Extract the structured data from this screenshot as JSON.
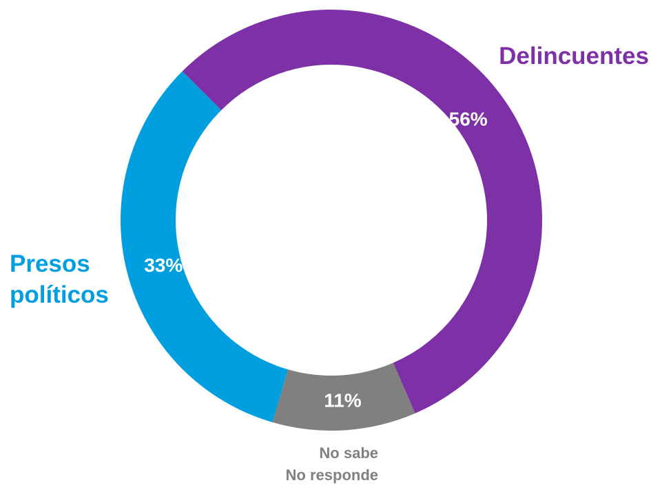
{
  "chart_data": {
    "type": "pie",
    "variant": "donut",
    "slices": [
      {
        "label": "Delincuentes",
        "label_lines": [
          "Delincuentes"
        ],
        "value": 56,
        "value_label": "56%",
        "color": "#7e31a6"
      },
      {
        "label": "No sabe No responde",
        "label_lines": [
          "No sabe",
          "No responde"
        ],
        "value": 11,
        "value_label": "11%",
        "color": "#808080"
      },
      {
        "label": "Presos políticos",
        "label_lines": [
          "Presos",
          "políticos"
        ],
        "value": 33,
        "value_label": "33%",
        "color": "#019fdf"
      }
    ],
    "legend": "none"
  }
}
